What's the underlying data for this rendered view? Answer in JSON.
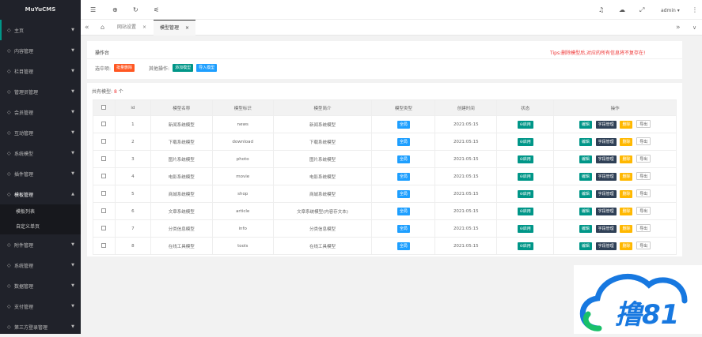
{
  "brand": "MuYuCMS",
  "sidebar": {
    "items": [
      {
        "label": "主页",
        "icon": "home-icon",
        "active": true
      },
      {
        "label": "内容管理",
        "icon": "book-icon"
      },
      {
        "label": "栏目管理",
        "icon": "column-icon"
      },
      {
        "label": "管理员管理",
        "icon": "admin-icon"
      },
      {
        "label": "会员管理",
        "icon": "user-icon"
      },
      {
        "label": "互动管理",
        "icon": "chat-icon"
      },
      {
        "label": "系统模型",
        "icon": "model-icon"
      },
      {
        "label": "插件管理",
        "icon": "plugin-icon"
      },
      {
        "label": "模板管理",
        "icon": "template-icon",
        "expanded": true
      }
    ],
    "sub_items": [
      "模板列表",
      "自定义单页"
    ],
    "items2": [
      {
        "label": "附件管理",
        "icon": "image-icon"
      },
      {
        "label": "系统管理",
        "icon": "gear-icon"
      },
      {
        "label": "数据管理",
        "icon": "database-icon"
      },
      {
        "label": "支付管理",
        "icon": "pay-icon"
      },
      {
        "label": "第三方登录管理",
        "icon": "location-icon"
      }
    ]
  },
  "header": {
    "user": "admin"
  },
  "tabs": [
    "网站设置",
    "模型管理"
  ],
  "panel": {
    "title": "操作台",
    "tips": "Tips:删除模型后,对应的所有信息将不复存在!",
    "selected_label": "选中项:",
    "batch_delete": "批量删除",
    "other_label": "其他操作:",
    "add_model": "添加模型",
    "import_model": "导入模型"
  },
  "count": {
    "label": "共有模型:",
    "value": "8",
    "unit": "个"
  },
  "table": {
    "headers": [
      "id",
      "模型名称",
      "模型标识",
      "模型简介",
      "模型类型",
      "创建时间",
      "状态",
      "操作"
    ],
    "rows": [
      {
        "id": "1",
        "name": "新闻系统模型",
        "key": "news",
        "intro": "新闻系统模型",
        "type": "全局",
        "time": "2021:05:15",
        "status": "启用"
      },
      {
        "id": "2",
        "name": "下载系统模型",
        "key": "download",
        "intro": "下载系统模型",
        "type": "全局",
        "time": "2021:05:15",
        "status": "启用"
      },
      {
        "id": "3",
        "name": "图片系统模型",
        "key": "photo",
        "intro": "图片系统模型",
        "type": "全局",
        "time": "2021:05:15",
        "status": "启用"
      },
      {
        "id": "4",
        "name": "电影系统模型",
        "key": "movie",
        "intro": "电影系统模型",
        "type": "全局",
        "time": "2021:05:15",
        "status": "启用"
      },
      {
        "id": "5",
        "name": "商城系统模型",
        "key": "shop",
        "intro": "商城系统模型",
        "type": "全局",
        "time": "2021:05:15",
        "status": "启用"
      },
      {
        "id": "6",
        "name": "文章系统模型",
        "key": "article",
        "intro": "文章系统模型(内容存文本)",
        "type": "全局",
        "time": "2021:05:15",
        "status": "启用"
      },
      {
        "id": "7",
        "name": "分类信息模型",
        "key": "info",
        "intro": "分类信息模型",
        "type": "全局",
        "time": "2021:05:15",
        "status": "启用"
      },
      {
        "id": "8",
        "name": "在线工具模型",
        "key": "tools",
        "intro": "在线工具模型",
        "type": "全局",
        "time": "2021:05:15",
        "status": "启用"
      }
    ],
    "actions": {
      "edit": "编辑",
      "fields": "字段管理",
      "delete": "删除",
      "export": "导出"
    }
  },
  "watermark": "撸81",
  "colors": {
    "sidebar": "#20222a",
    "accent": "#009688",
    "danger": "#ff5722",
    "blue": "#1e9fff",
    "yellow": "#ffb800",
    "dark": "#2f4056"
  }
}
